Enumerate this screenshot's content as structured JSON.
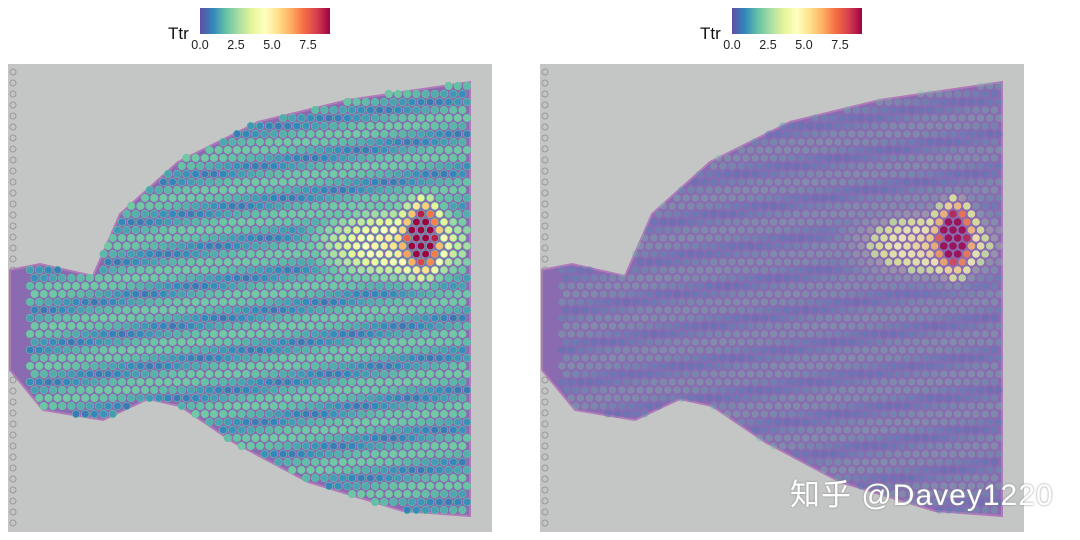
{
  "chart_data": [
    {
      "type": "scatter",
      "subtype": "spatial-feature-plot",
      "feature": "Ttr",
      "colorbar": {
        "title": "Ttr",
        "ticks": [
          "0.0",
          "2.5",
          "5.0",
          "7.5"
        ],
        "range": [
          0,
          9
        ],
        "palette": [
          "#5E4FA2",
          "#3288BD",
          "#66C2A5",
          "#ABDDA4",
          "#E6F598",
          "#FFFFBF",
          "#FEE08B",
          "#FDAE61",
          "#F46D43",
          "#D53E4F",
          "#9E0142"
        ]
      },
      "spot_opacity": 1.0,
      "hotspot_value": 9
    },
    {
      "type": "scatter",
      "subtype": "spatial-feature-plot",
      "feature": "Ttr",
      "colorbar": {
        "title": "Ttr",
        "ticks": [
          "0.0",
          "2.5",
          "5.0",
          "7.5"
        ],
        "range": [
          0,
          9
        ],
        "palette": [
          "#5E4FA2",
          "#3288BD",
          "#66C2A5",
          "#ABDDA4",
          "#E6F598",
          "#FFFFBF",
          "#FEE08B",
          "#FDAE61",
          "#F46D43",
          "#D53E4F",
          "#9E0142"
        ]
      },
      "spot_opacity": 0.35,
      "hotspot_value": 9
    }
  ],
  "watermark": "知乎 @Davey1220"
}
